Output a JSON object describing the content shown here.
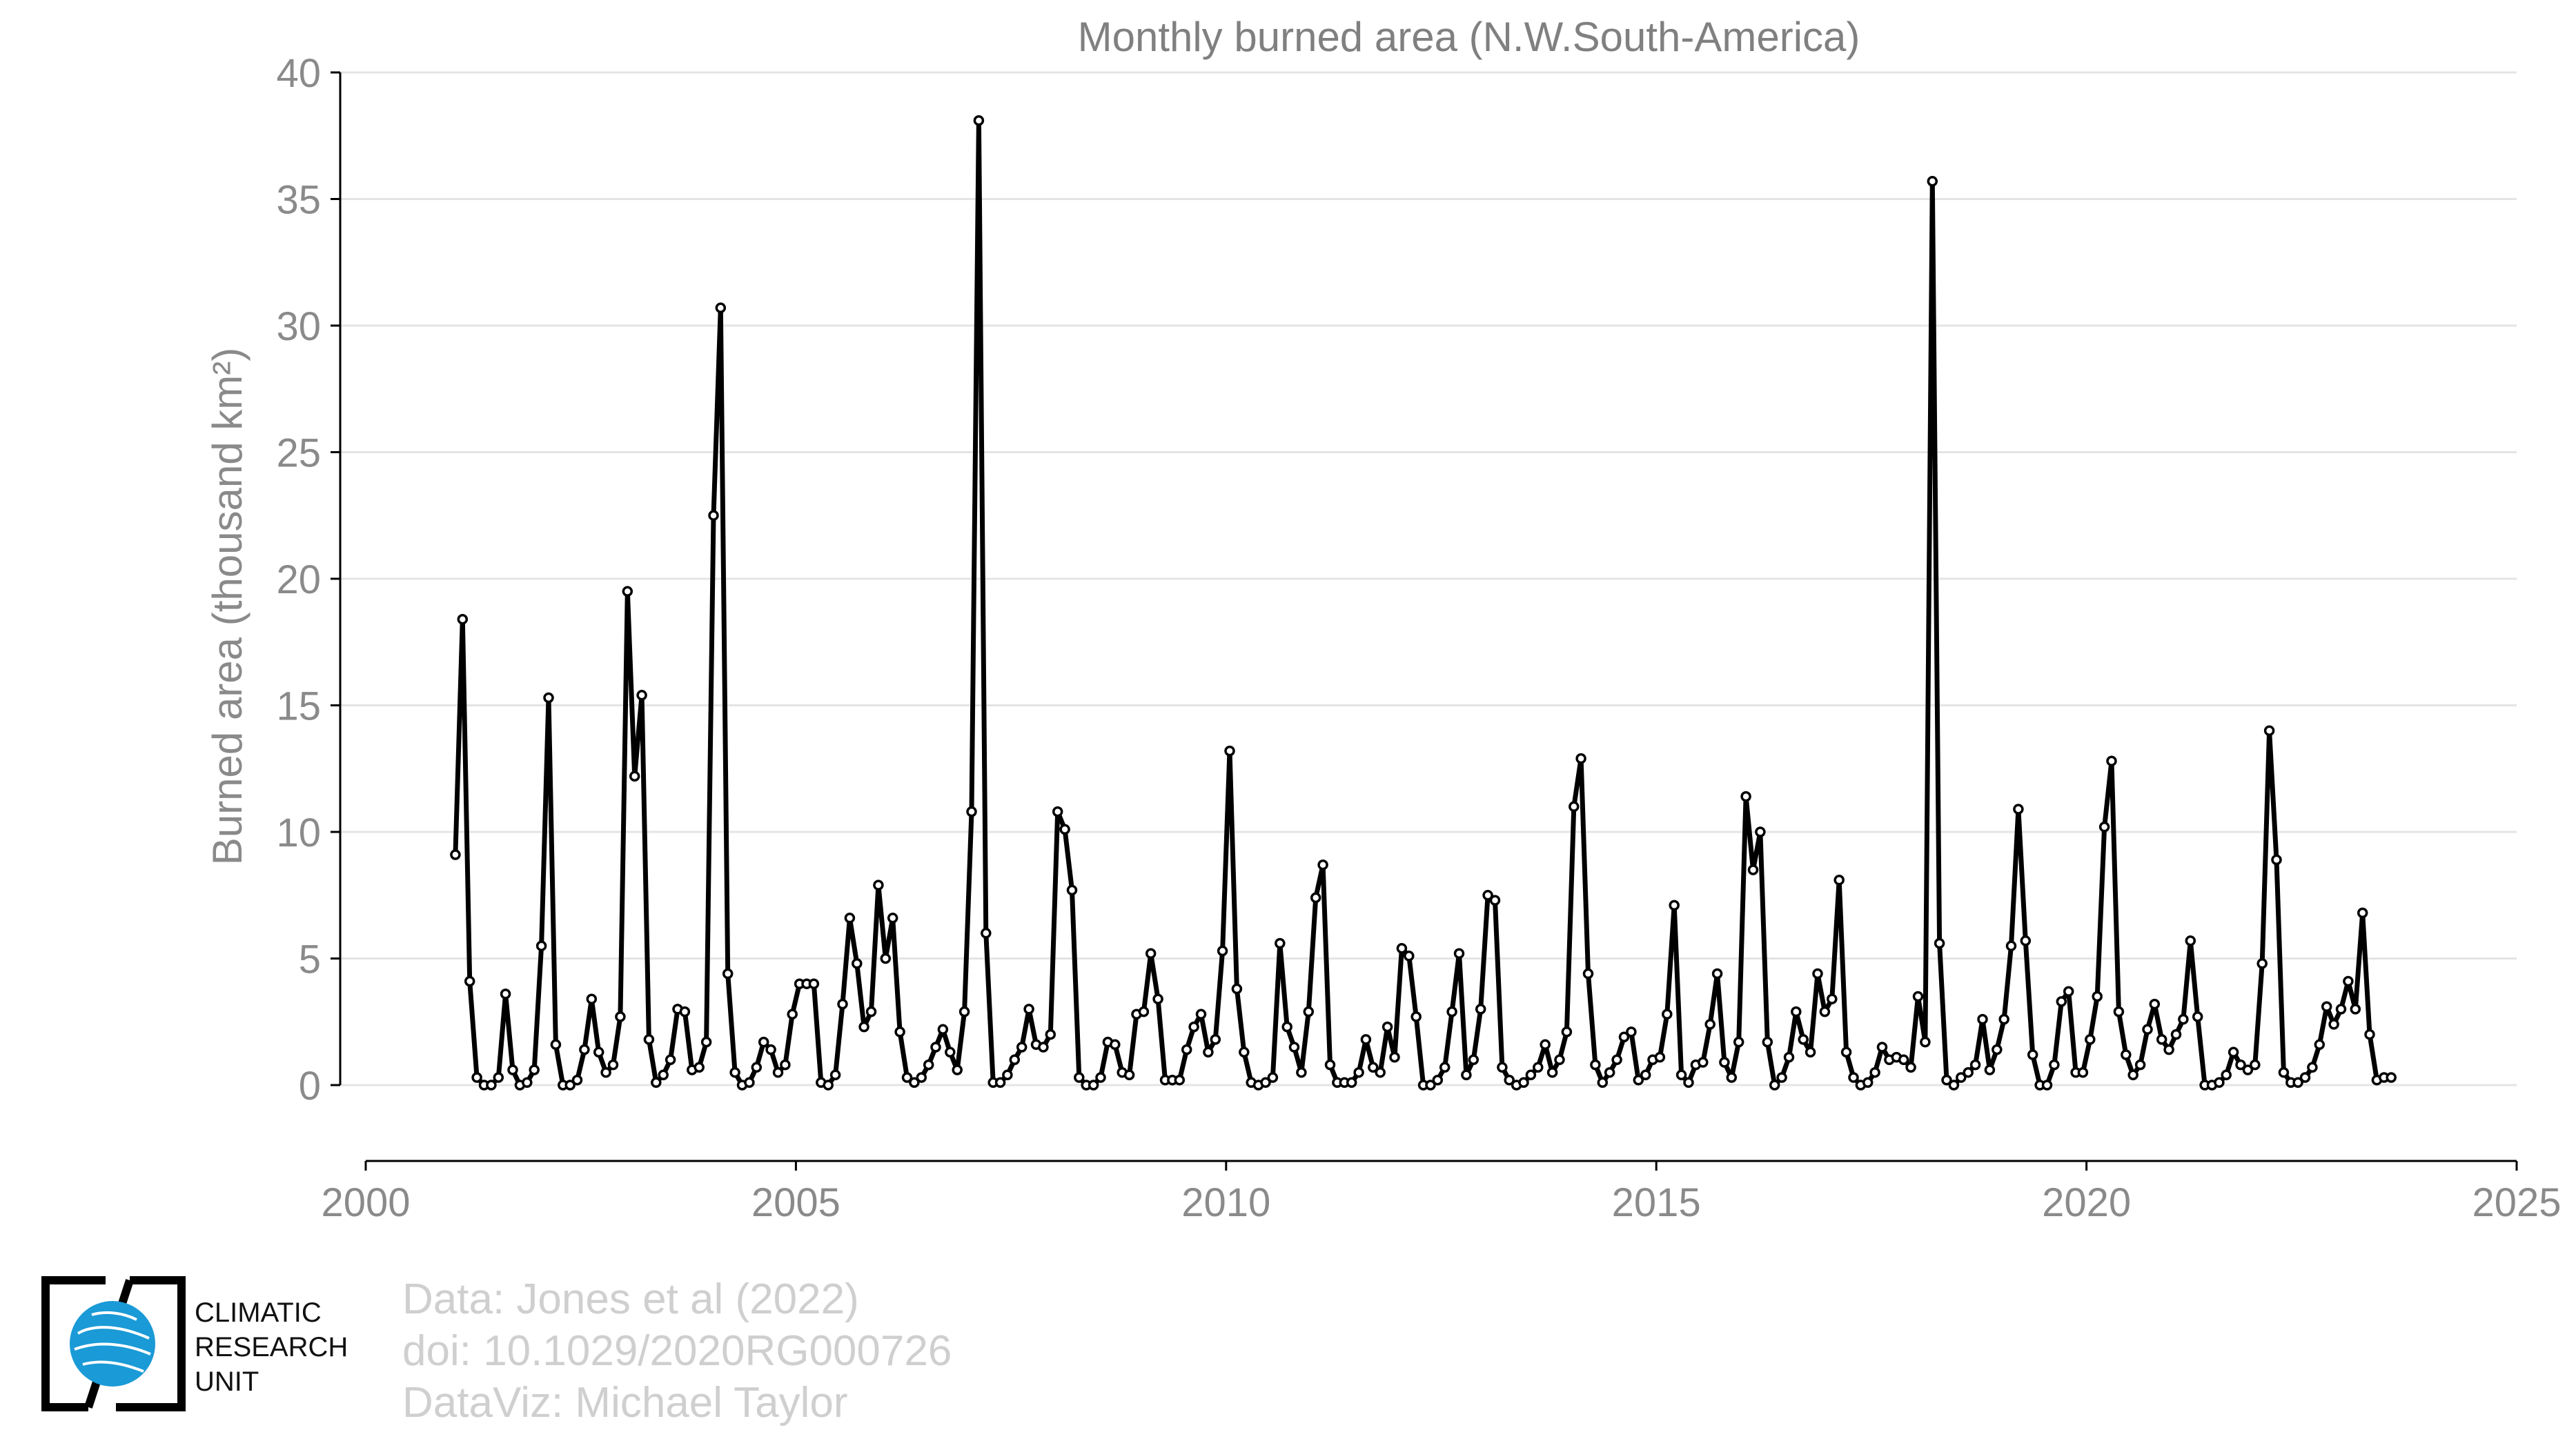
{
  "chart_data": {
    "type": "line",
    "title": "Monthly burned area (N.W.South-America)",
    "ylabel": "Burned area (thousand km²)",
    "xlabel": "",
    "xlim": [
      2000,
      2025
    ],
    "ylim": [
      -3,
      40
    ],
    "x_ticks": [
      2000,
      2005,
      2010,
      2015,
      2020,
      2025
    ],
    "y_ticks": [
      0,
      5,
      10,
      15,
      20,
      25,
      30,
      35,
      40
    ],
    "grid": true,
    "x_start": 2001.042,
    "x_step": 0.0833333,
    "values": [
      9.1,
      18.4,
      4.1,
      0.3,
      0.0,
      0.0,
      0.3,
      3.6,
      0.6,
      0.0,
      0.1,
      0.6,
      5.5,
      15.3,
      1.6,
      0.0,
      0.0,
      0.2,
      1.4,
      3.4,
      1.3,
      0.5,
      0.8,
      2.7,
      19.5,
      12.2,
      15.4,
      1.8,
      0.1,
      0.4,
      1.0,
      3.0,
      2.9,
      0.6,
      0.7,
      1.7,
      22.5,
      30.7,
      4.4,
      0.5,
      0.0,
      0.1,
      0.7,
      1.7,
      1.4,
      0.5,
      0.8,
      2.8,
      4.0,
      4.0,
      4.0,
      0.1,
      0.0,
      0.4,
      3.2,
      6.6,
      4.8,
      2.3,
      2.9,
      7.9,
      5.0,
      6.6,
      2.1,
      0.3,
      0.1,
      0.3,
      0.8,
      1.5,
      2.2,
      1.3,
      0.6,
      2.9,
      10.8,
      38.1,
      6.0,
      0.1,
      0.1,
      0.4,
      1.0,
      1.5,
      3.0,
      1.6,
      1.5,
      2.0,
      10.8,
      10.1,
      7.7,
      0.3,
      0.0,
      0.0,
      0.3,
      1.7,
      1.6,
      0.5,
      0.4,
      2.8,
      2.9,
      5.2,
      3.4,
      0.2,
      0.2,
      0.2,
      1.4,
      2.3,
      2.8,
      1.3,
      1.8,
      5.3,
      13.2,
      3.8,
      1.3,
      0.1,
      0.0,
      0.1,
      0.3,
      5.6,
      2.3,
      1.5,
      0.5,
      2.9,
      7.4,
      8.7,
      0.8,
      0.1,
      0.1,
      0.1,
      0.5,
      1.8,
      0.7,
      0.5,
      2.3,
      1.1,
      5.4,
      5.1,
      2.7,
      0.0,
      0.0,
      0.2,
      0.7,
      2.9,
      5.2,
      0.4,
      1.0,
      3.0,
      7.5,
      7.3,
      0.7,
      0.2,
      0.0,
      0.1,
      0.4,
      0.7,
      1.6,
      0.5,
      1.0,
      2.1,
      11.0,
      12.9,
      4.4,
      0.8,
      0.1,
      0.5,
      1.0,
      1.9,
      2.1,
      0.2,
      0.4,
      1.0,
      1.1,
      2.8,
      7.1,
      0.4,
      0.1,
      0.8,
      0.9,
      2.4,
      4.4,
      0.9,
      0.3,
      1.7,
      11.4,
      8.5,
      10.0,
      1.7,
      0.0,
      0.3,
      1.1,
      2.9,
      1.8,
      1.3,
      4.4,
      2.9,
      3.4,
      8.1,
      1.3,
      0.3,
      0.0,
      0.1,
      0.5,
      1.5,
      1.0,
      1.1,
      1.0,
      0.7,
      3.5,
      1.7,
      35.7,
      5.6,
      0.2,
      0.0,
      0.3,
      0.5,
      0.8,
      2.6,
      0.6,
      1.4,
      2.6,
      5.5,
      10.9,
      5.7,
      1.2,
      0.0,
      0.0,
      0.8,
      3.3,
      3.7,
      0.5,
      0.5,
      1.8,
      3.5,
      10.2,
      12.8,
      2.9,
      1.2,
      0.4,
      0.8,
      2.2,
      3.2,
      1.8,
      1.4,
      2.0,
      2.6,
      5.7,
      2.7,
      0.0,
      0.0,
      0.1,
      0.4,
      1.3,
      0.8,
      0.6,
      0.8,
      4.8,
      14.0,
      8.9,
      0.5,
      0.1,
      0.1,
      0.3,
      0.7,
      1.6,
      3.1,
      2.4,
      3.0,
      4.1,
      3.0,
      6.8,
      2.0,
      0.2,
      0.3,
      0.3
    ]
  },
  "footer": {
    "line1": "Data: Jones et al (2022)",
    "line2": "doi: 10.1029/2020RG000726",
    "line3": "DataViz: Michael Taylor"
  },
  "logo": {
    "line1": "CLIMATIC",
    "line2": "RESEARCH",
    "line3": "UNIT",
    "brand_color": "#1a9ad6"
  },
  "colors": {
    "line": "#000000",
    "marker_fill": "#ffffff",
    "grid": "#e4e4e4",
    "axis": "#000000",
    "tick_text": "#8a8a8a",
    "title_text": "#808080"
  }
}
